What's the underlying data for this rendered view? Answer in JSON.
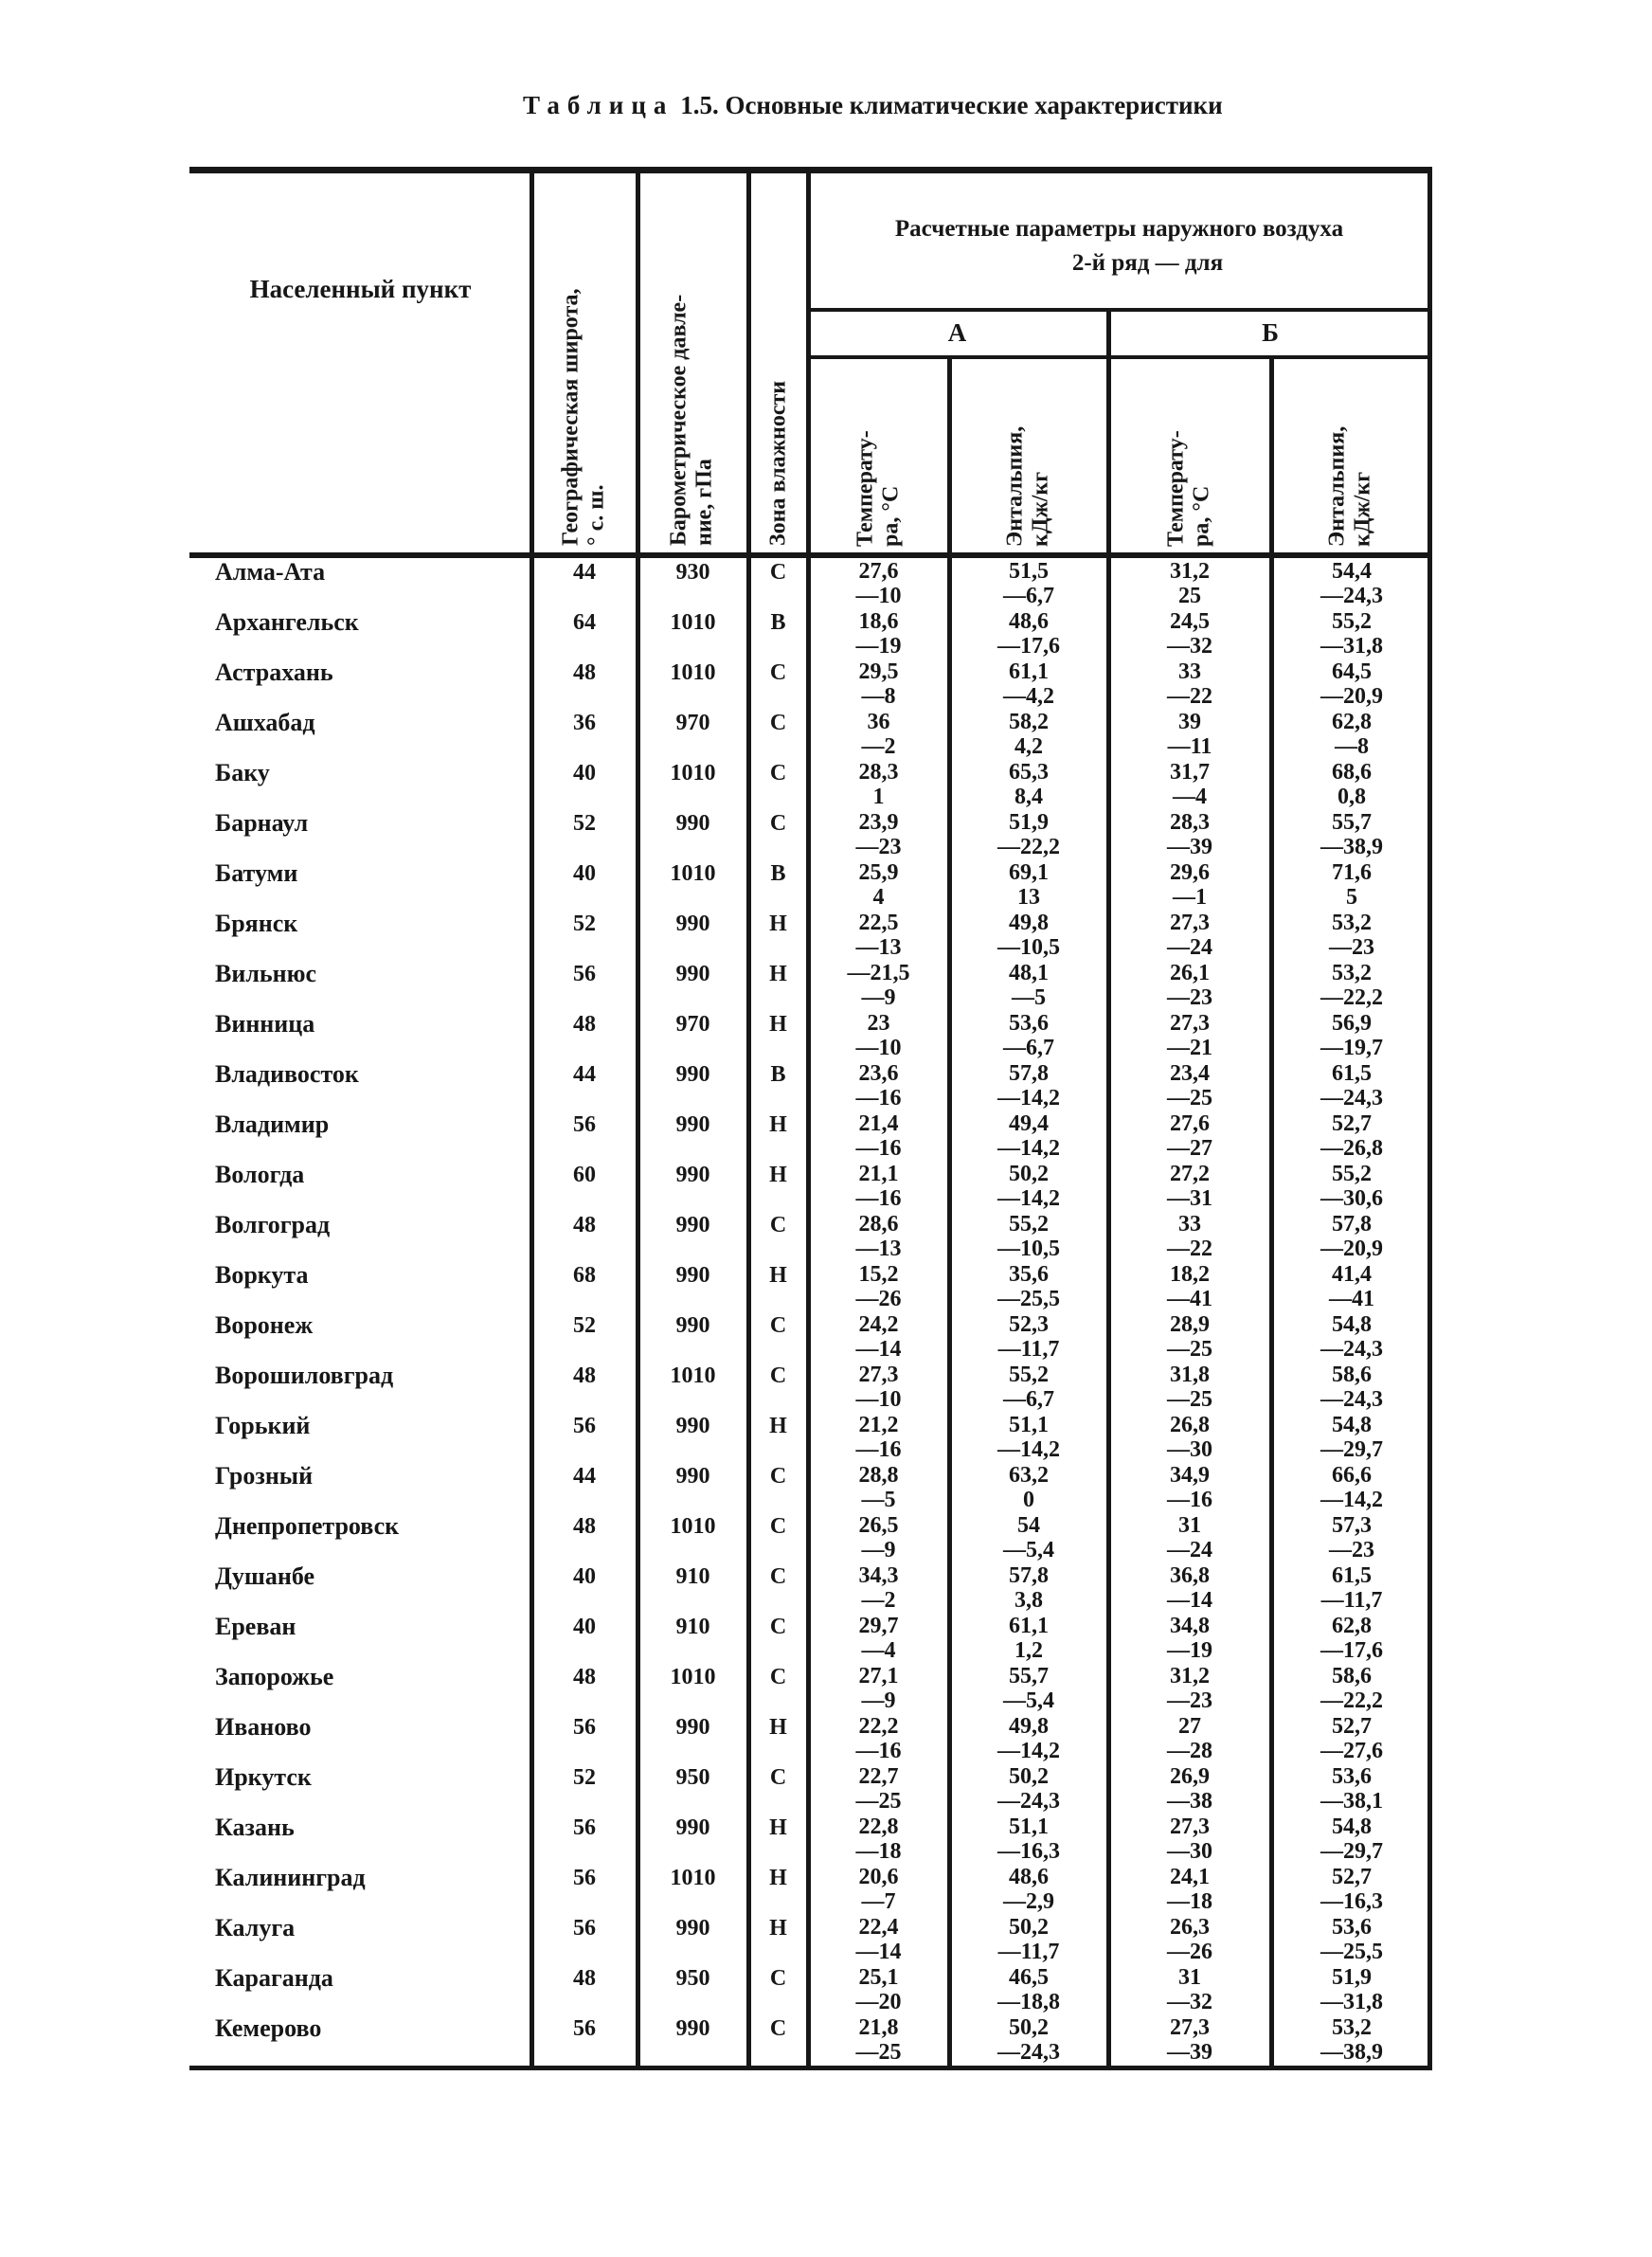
{
  "ink": "#171717",
  "paper": "#ffffff",
  "title": {
    "spaced": "Таблица",
    "rest": " 1.5. Основные климатические характеристики"
  },
  "table": {
    "col_city": "Населенный пункт",
    "col_latitude": "Географическая широта,\n° с. ш.",
    "col_pressure": "Барометрическое давле-\nние, гПа",
    "col_zone": "Зона влажности",
    "group_title_line1": "Расчетные параметры наружного воздуха",
    "group_title_line2": "2-й ряд — для",
    "group_a": "А",
    "group_b": "Б",
    "col_temp": "Температу-\nра, °С",
    "col_enth": "Энтальпия,\nкДж/кг",
    "rows": [
      {
        "city": "Алма-Ата",
        "lat": "44",
        "press": "930",
        "zone": "С",
        "a_t": [
          "27,6",
          "—10"
        ],
        "a_h": [
          "51,5",
          "—6,7"
        ],
        "b_t": [
          "31,2",
          "25"
        ],
        "b_h": [
          "54,4",
          "—24,3"
        ]
      },
      {
        "city": "Архангельск",
        "lat": "64",
        "press": "1010",
        "zone": "В",
        "a_t": [
          "18,6",
          "—19"
        ],
        "a_h": [
          "48,6",
          "—17,6"
        ],
        "b_t": [
          "24,5",
          "—32"
        ],
        "b_h": [
          "55,2",
          "—31,8"
        ]
      },
      {
        "city": "Астрахань",
        "lat": "48",
        "press": "1010",
        "zone": "С",
        "a_t": [
          "29,5",
          "—8"
        ],
        "a_h": [
          "61,1",
          "—4,2"
        ],
        "b_t": [
          "33",
          "—22"
        ],
        "b_h": [
          "64,5",
          "—20,9"
        ]
      },
      {
        "city": "Ашхабад",
        "lat": "36",
        "press": "970",
        "zone": "С",
        "a_t": [
          "36",
          "—2"
        ],
        "a_h": [
          "58,2",
          "4,2"
        ],
        "b_t": [
          "39",
          "—11"
        ],
        "b_h": [
          "62,8",
          "—8"
        ]
      },
      {
        "city": "Баку",
        "lat": "40",
        "press": "1010",
        "zone": "С",
        "a_t": [
          "28,3",
          "1"
        ],
        "a_h": [
          "65,3",
          "8,4"
        ],
        "b_t": [
          "31,7",
          "—4"
        ],
        "b_h": [
          "68,6",
          "0,8"
        ]
      },
      {
        "city": "Барнаул",
        "lat": "52",
        "press": "990",
        "zone": "С",
        "a_t": [
          "23,9",
          "—23"
        ],
        "a_h": [
          "51,9",
          "—22,2"
        ],
        "b_t": [
          "28,3",
          "—39"
        ],
        "b_h": [
          "55,7",
          "—38,9"
        ]
      },
      {
        "city": "Батуми",
        "lat": "40",
        "press": "1010",
        "zone": "В",
        "a_t": [
          "25,9",
          "4"
        ],
        "a_h": [
          "69,1",
          "13"
        ],
        "b_t": [
          "29,6",
          "—1"
        ],
        "b_h": [
          "71,6",
          "5"
        ]
      },
      {
        "city": "Брянск",
        "lat": "52",
        "press": "990",
        "zone": "Н",
        "a_t": [
          "22,5",
          "—13"
        ],
        "a_h": [
          "49,8",
          "—10,5"
        ],
        "b_t": [
          "27,3",
          "—24"
        ],
        "b_h": [
          "53,2",
          "—23"
        ]
      },
      {
        "city": "Вильнюс",
        "lat": "56",
        "press": "990",
        "zone": "Н",
        "a_t": [
          "—21,5",
          "—9"
        ],
        "a_h": [
          "48,1",
          "—5"
        ],
        "b_t": [
          "26,1",
          "—23"
        ],
        "b_h": [
          "53,2",
          "—22,2"
        ]
      },
      {
        "city": "Винница",
        "lat": "48",
        "press": "970",
        "zone": "Н",
        "a_t": [
          "23",
          "—10"
        ],
        "a_h": [
          "53,6",
          "—6,7"
        ],
        "b_t": [
          "27,3",
          "—21"
        ],
        "b_h": [
          "56,9",
          "—19,7"
        ]
      },
      {
        "city": "Владивосток",
        "lat": "44",
        "press": "990",
        "zone": "В",
        "a_t": [
          "23,6",
          "—16"
        ],
        "a_h": [
          "57,8",
          "—14,2"
        ],
        "b_t": [
          "23,4",
          "—25"
        ],
        "b_h": [
          "61,5",
          "—24,3"
        ]
      },
      {
        "city": "Владимир",
        "lat": "56",
        "press": "990",
        "zone": "Н",
        "a_t": [
          "21,4",
          "—16"
        ],
        "a_h": [
          "49,4",
          "—14,2"
        ],
        "b_t": [
          "27,6",
          "—27"
        ],
        "b_h": [
          "52,7",
          "—26,8"
        ]
      },
      {
        "city": "Вологда",
        "lat": "60",
        "press": "990",
        "zone": "Н",
        "a_t": [
          "21,1",
          "—16"
        ],
        "a_h": [
          "50,2",
          "—14,2"
        ],
        "b_t": [
          "27,2",
          "—31"
        ],
        "b_h": [
          "55,2",
          "—30,6"
        ]
      },
      {
        "city": "Волгоград",
        "lat": "48",
        "press": "990",
        "zone": "С",
        "a_t": [
          "28,6",
          "—13"
        ],
        "a_h": [
          "55,2",
          "—10,5"
        ],
        "b_t": [
          "33",
          "—22"
        ],
        "b_h": [
          "57,8",
          "—20,9"
        ]
      },
      {
        "city": "Воркута",
        "lat": "68",
        "press": "990",
        "zone": "Н",
        "a_t": [
          "15,2",
          "—26"
        ],
        "a_h": [
          "35,6",
          "—25,5"
        ],
        "b_t": [
          "18,2",
          "—41"
        ],
        "b_h": [
          "41,4",
          "—41"
        ]
      },
      {
        "city": "Воронеж",
        "lat": "52",
        "press": "990",
        "zone": "С",
        "a_t": [
          "24,2",
          "—14"
        ],
        "a_h": [
          "52,3",
          "—11,7"
        ],
        "b_t": [
          "28,9",
          "—25"
        ],
        "b_h": [
          "54,8",
          "—24,3"
        ]
      },
      {
        "city": "Ворошиловград",
        "lat": "48",
        "press": "1010",
        "zone": "С",
        "a_t": [
          "27,3",
          "—10"
        ],
        "a_h": [
          "55,2",
          "—6,7"
        ],
        "b_t": [
          "31,8",
          "—25"
        ],
        "b_h": [
          "58,6",
          "—24,3"
        ]
      },
      {
        "city": "Горький",
        "lat": "56",
        "press": "990",
        "zone": "Н",
        "a_t": [
          "21,2",
          "—16"
        ],
        "a_h": [
          "51,1",
          "—14,2"
        ],
        "b_t": [
          "26,8",
          "—30"
        ],
        "b_h": [
          "54,8",
          "—29,7"
        ]
      },
      {
        "city": "Грозный",
        "lat": "44",
        "press": "990",
        "zone": "С",
        "a_t": [
          "28,8",
          "—5"
        ],
        "a_h": [
          "63,2",
          "0"
        ],
        "b_t": [
          "34,9",
          "—16"
        ],
        "b_h": [
          "66,6",
          "—14,2"
        ]
      },
      {
        "city": "Днепропетровск",
        "lat": "48",
        "press": "1010",
        "zone": "С",
        "a_t": [
          "26,5",
          "—9"
        ],
        "a_h": [
          "54",
          "—5,4"
        ],
        "b_t": [
          "31",
          "—24"
        ],
        "b_h": [
          "57,3",
          "—23"
        ]
      },
      {
        "city": "Душанбе",
        "lat": "40",
        "press": "910",
        "zone": "С",
        "a_t": [
          "34,3",
          "—2"
        ],
        "a_h": [
          "57,8",
          "3,8"
        ],
        "b_t": [
          "36,8",
          "—14"
        ],
        "b_h": [
          "61,5",
          "—11,7"
        ]
      },
      {
        "city": "Ереван",
        "lat": "40",
        "press": "910",
        "zone": "С",
        "a_t": [
          "29,7",
          "—4"
        ],
        "a_h": [
          "61,1",
          "1,2"
        ],
        "b_t": [
          "34,8",
          "—19"
        ],
        "b_h": [
          "62,8",
          "—17,6"
        ]
      },
      {
        "city": "Запорожье",
        "lat": "48",
        "press": "1010",
        "zone": "С",
        "a_t": [
          "27,1",
          "—9"
        ],
        "a_h": [
          "55,7",
          "—5,4"
        ],
        "b_t": [
          "31,2",
          "—23"
        ],
        "b_h": [
          "58,6",
          "—22,2"
        ]
      },
      {
        "city": "Иваново",
        "lat": "56",
        "press": "990",
        "zone": "Н",
        "a_t": [
          "22,2",
          "—16"
        ],
        "a_h": [
          "49,8",
          "—14,2"
        ],
        "b_t": [
          "27",
          "—28"
        ],
        "b_h": [
          "52,7",
          "—27,6"
        ]
      },
      {
        "city": "Иркутск",
        "lat": "52",
        "press": "950",
        "zone": "С",
        "a_t": [
          "22,7",
          "—25"
        ],
        "a_h": [
          "50,2",
          "—24,3"
        ],
        "b_t": [
          "26,9",
          "—38"
        ],
        "b_h": [
          "53,6",
          "—38,1"
        ]
      },
      {
        "city": "Казань",
        "lat": "56",
        "press": "990",
        "zone": "Н",
        "a_t": [
          "22,8",
          "—18"
        ],
        "a_h": [
          "51,1",
          "—16,3"
        ],
        "b_t": [
          "27,3",
          "—30"
        ],
        "b_h": [
          "54,8",
          "—29,7"
        ]
      },
      {
        "city": "Калининград",
        "lat": "56",
        "press": "1010",
        "zone": "Н",
        "a_t": [
          "20,6",
          "—7"
        ],
        "a_h": [
          "48,6",
          "—2,9"
        ],
        "b_t": [
          "24,1",
          "—18"
        ],
        "b_h": [
          "52,7",
          "—16,3"
        ]
      },
      {
        "city": "Калуга",
        "lat": "56",
        "press": "990",
        "zone": "Н",
        "a_t": [
          "22,4",
          "—14"
        ],
        "a_h": [
          "50,2",
          "—11,7"
        ],
        "b_t": [
          "26,3",
          "—26"
        ],
        "b_h": [
          "53,6",
          "—25,5"
        ]
      },
      {
        "city": "Караганда",
        "lat": "48",
        "press": "950",
        "zone": "С",
        "a_t": [
          "25,1",
          "—20"
        ],
        "a_h": [
          "46,5",
          "—18,8"
        ],
        "b_t": [
          "31",
          "—32"
        ],
        "b_h": [
          "51,9",
          "—31,8"
        ]
      },
      {
        "city": "Кемерово",
        "lat": "56",
        "press": "990",
        "zone": "С",
        "a_t": [
          "21,8",
          "—25"
        ],
        "a_h": [
          "50,2",
          "—24,3"
        ],
        "b_t": [
          "27,3",
          "—39"
        ],
        "b_h": [
          "53,2",
          "—38,9"
        ]
      }
    ]
  }
}
